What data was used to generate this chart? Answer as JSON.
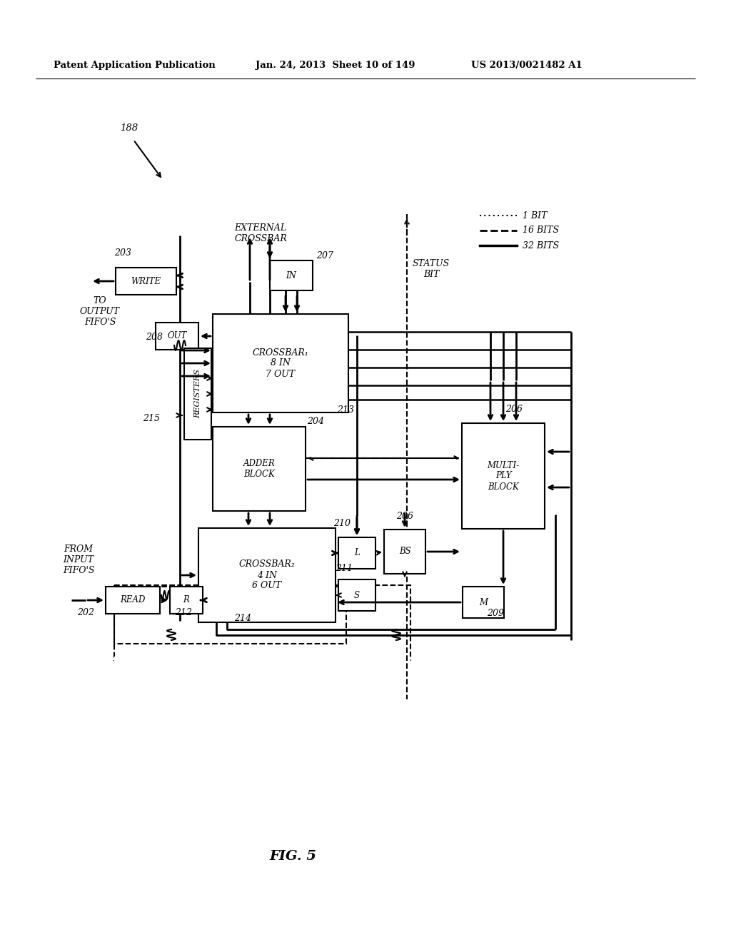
{
  "bg_color": "#ffffff",
  "header_left": "Patent Application Publication",
  "header_mid": "Jan. 24, 2013  Sheet 10 of 149",
  "header_right": "US 2013/0021482 A1",
  "fig_label": "FIG. 5",
  "ref_188": "188",
  "ref_203": "203",
  "ref_207": "207",
  "ref_208": "208",
  "ref_215": "215",
  "ref_204": "204",
  "ref_206a": "206",
  "ref_206b": "206",
  "ref_210": "210",
  "ref_211": "211",
  "ref_212": "212",
  "ref_213": "213",
  "ref_214": "214",
  "ref_202": "202",
  "ref_209": "209",
  "legend_1bit": "1 BIT",
  "legend_16bit": "16 BITS",
  "legend_32bit": "32 BITS",
  "label_ext_crossbar": "EXTERNAL\nCROSSBAR",
  "label_status_bit": "STATUS\nBIT",
  "label_write": "WRITE",
  "label_out": "OUT",
  "label_in": "IN",
  "label_crossbar1": "CROSSBAR₁\n8 IN\n7 OUT",
  "label_crossbar2": "CROSSBAR₂\n4 IN\n6 OUT",
  "label_registers": "REGISTERS",
  "label_adder": "ADDER\nBLOCK",
  "label_multiply": "MULTI-\nPLY\nBLOCK",
  "label_l": "L",
  "label_bs": "BS",
  "label_s": "S",
  "label_m": "M",
  "label_r": "R",
  "label_read": "READ",
  "label_to_output": "TO\nOUTPUT\nFIFO'S",
  "label_from_input": "FROM\nINPUT\nFIFO'S"
}
